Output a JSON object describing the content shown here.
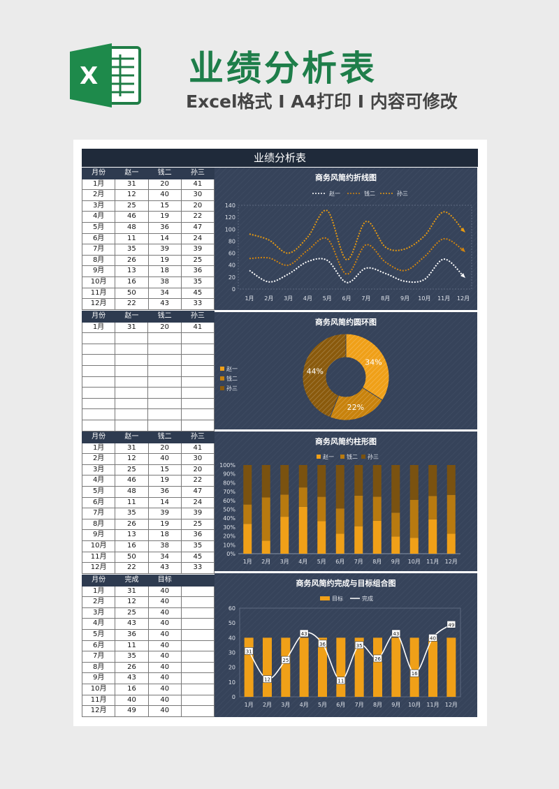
{
  "header": {
    "title": "业绩分析表",
    "subtitle": "Excel格式 I A4打印 I 内容可修改"
  },
  "sheet": {
    "title": "业绩分析表"
  },
  "colors": {
    "gold": "#f0a018",
    "amber": "#c8820c",
    "brown": "#8a5a0c",
    "panel": "#36435a",
    "header_row": "#2e3b50"
  },
  "table1": {
    "headers": [
      "月份",
      "赵一",
      "钱二",
      "孙三"
    ],
    "rows": [
      [
        "1月",
        "31",
        "20",
        "41"
      ],
      [
        "2月",
        "12",
        "40",
        "30"
      ],
      [
        "3月",
        "25",
        "15",
        "20"
      ],
      [
        "4月",
        "46",
        "19",
        "22"
      ],
      [
        "5月",
        "48",
        "36",
        "47"
      ],
      [
        "6月",
        "11",
        "14",
        "24"
      ],
      [
        "7月",
        "35",
        "39",
        "39"
      ],
      [
        "8月",
        "26",
        "19",
        "25"
      ],
      [
        "9月",
        "13",
        "18",
        "36"
      ],
      [
        "10月",
        "16",
        "38",
        "35"
      ],
      [
        "11月",
        "50",
        "34",
        "45"
      ],
      [
        "12月",
        "22",
        "43",
        "33"
      ]
    ]
  },
  "table2": {
    "headers": [
      "月份",
      "赵一",
      "钱二",
      "孙三"
    ],
    "rows": [
      [
        "1月",
        "31",
        "20",
        "41"
      ],
      [
        "",
        "",
        "",
        ""
      ],
      [
        "",
        "",
        "",
        ""
      ],
      [
        "",
        "",
        "",
        ""
      ],
      [
        "",
        "",
        "",
        ""
      ],
      [
        "",
        "",
        "",
        ""
      ],
      [
        "",
        "",
        "",
        ""
      ],
      [
        "",
        "",
        "",
        ""
      ],
      [
        "",
        "",
        "",
        ""
      ],
      [
        "",
        "",
        "",
        ""
      ],
      [
        "",
        "",
        "",
        ""
      ]
    ]
  },
  "table3": {
    "headers": [
      "月份",
      "赵一",
      "钱二",
      "孙三"
    ],
    "rows": [
      [
        "1月",
        "31",
        "20",
        "41"
      ],
      [
        "2月",
        "12",
        "40",
        "30"
      ],
      [
        "3月",
        "25",
        "15",
        "20"
      ],
      [
        "4月",
        "46",
        "19",
        "22"
      ],
      [
        "5月",
        "48",
        "36",
        "47"
      ],
      [
        "6月",
        "11",
        "14",
        "24"
      ],
      [
        "7月",
        "35",
        "39",
        "39"
      ],
      [
        "8月",
        "26",
        "19",
        "25"
      ],
      [
        "9月",
        "13",
        "18",
        "36"
      ],
      [
        "10月",
        "16",
        "38",
        "35"
      ],
      [
        "11月",
        "50",
        "34",
        "45"
      ],
      [
        "12月",
        "22",
        "43",
        "33"
      ]
    ]
  },
  "table4": {
    "headers": [
      "月份",
      "完成",
      "目标",
      ""
    ],
    "rows": [
      [
        "1月",
        "31",
        "40",
        ""
      ],
      [
        "2月",
        "12",
        "40",
        ""
      ],
      [
        "3月",
        "25",
        "40",
        ""
      ],
      [
        "4月",
        "43",
        "40",
        ""
      ],
      [
        "5月",
        "36",
        "40",
        ""
      ],
      [
        "6月",
        "11",
        "40",
        ""
      ],
      [
        "7月",
        "35",
        "40",
        ""
      ],
      [
        "8月",
        "26",
        "40",
        ""
      ],
      [
        "9月",
        "43",
        "40",
        ""
      ],
      [
        "10月",
        "16",
        "40",
        ""
      ],
      [
        "11月",
        "40",
        "40",
        ""
      ],
      [
        "12月",
        "49",
        "40",
        ""
      ]
    ]
  },
  "chart_data": [
    {
      "type": "line",
      "title": "商务风简约折线图",
      "categories": [
        "1月",
        "2月",
        "3月",
        "4月",
        "5月",
        "6月",
        "7月",
        "8月",
        "9月",
        "10月",
        "11月",
        "12月"
      ],
      "series": [
        {
          "name": "赵一",
          "values": [
            31,
            12,
            25,
            46,
            48,
            11,
            35,
            26,
            13,
            16,
            50,
            22
          ],
          "color": "#ffffff"
        },
        {
          "name": "钱二",
          "values": [
            51,
            52,
            40,
            65,
            84,
            25,
            74,
            45,
            31,
            54,
            84,
            65
          ],
          "color": "#d08410"
        },
        {
          "name": "孙三",
          "values": [
            92,
            82,
            60,
            87,
            131,
            49,
            113,
            70,
            67,
            89,
            129,
            98
          ],
          "color": "#e69a12"
        }
      ],
      "ylim": [
        0,
        140
      ],
      "yticks": [
        0,
        20,
        40,
        60,
        80,
        100,
        120,
        140
      ],
      "legend": "top"
    },
    {
      "type": "pie",
      "title": "商务风简约圆环图",
      "labels": [
        "赵一",
        "钱二",
        "孙三"
      ],
      "values": [
        34,
        22,
        44
      ],
      "display": [
        "34%",
        "22%",
        "44%"
      ],
      "colors": [
        "#f0a018",
        "#c8820c",
        "#8a5a0c"
      ],
      "legend": "left"
    },
    {
      "type": "bar",
      "title": "商务风简约柱形图",
      "categories": [
        "1月",
        "2月",
        "3月",
        "4月",
        "5月",
        "6月",
        "7月",
        "8月",
        "9月",
        "10月",
        "11月",
        "12月"
      ],
      "series": [
        {
          "name": "赵一",
          "values": [
            31,
            12,
            25,
            46,
            48,
            11,
            35,
            26,
            13,
            16,
            50,
            22
          ],
          "color": "#f0a018"
        },
        {
          "name": "钱二",
          "values": [
            20,
            40,
            15,
            19,
            36,
            14,
            39,
            19,
            18,
            38,
            34,
            43
          ],
          "color": "#b87a10"
        },
        {
          "name": "孙三",
          "values": [
            41,
            30,
            20,
            22,
            47,
            24,
            39,
            25,
            36,
            35,
            45,
            33
          ],
          "color": "#7a5210"
        }
      ],
      "yticks": [
        "0%",
        "10%",
        "20%",
        "30%",
        "40%",
        "50%",
        "60%",
        "70%",
        "80%",
        "90%",
        "100%"
      ],
      "stacked_percent": true,
      "legend": "top"
    },
    {
      "type": "bar",
      "title": "商务风简约完成与目标组合图",
      "categories": [
        "1月",
        "2月",
        "3月",
        "4月",
        "5月",
        "6月",
        "7月",
        "8月",
        "9月",
        "10月",
        "11月",
        "12月"
      ],
      "series": [
        {
          "name": "目标",
          "values": [
            40,
            40,
            40,
            40,
            40,
            40,
            40,
            40,
            40,
            40,
            40,
            40
          ],
          "color": "#f0a018"
        },
        {
          "name": "完成",
          "values": [
            31,
            12,
            25,
            43,
            36,
            11,
            35,
            26,
            43,
            16,
            40,
            49
          ],
          "color": "#ffffff"
        }
      ],
      "ylim": [
        0,
        60
      ],
      "yticks": [
        0,
        10,
        20,
        30,
        40,
        50,
        60
      ],
      "legend": "top"
    }
  ]
}
